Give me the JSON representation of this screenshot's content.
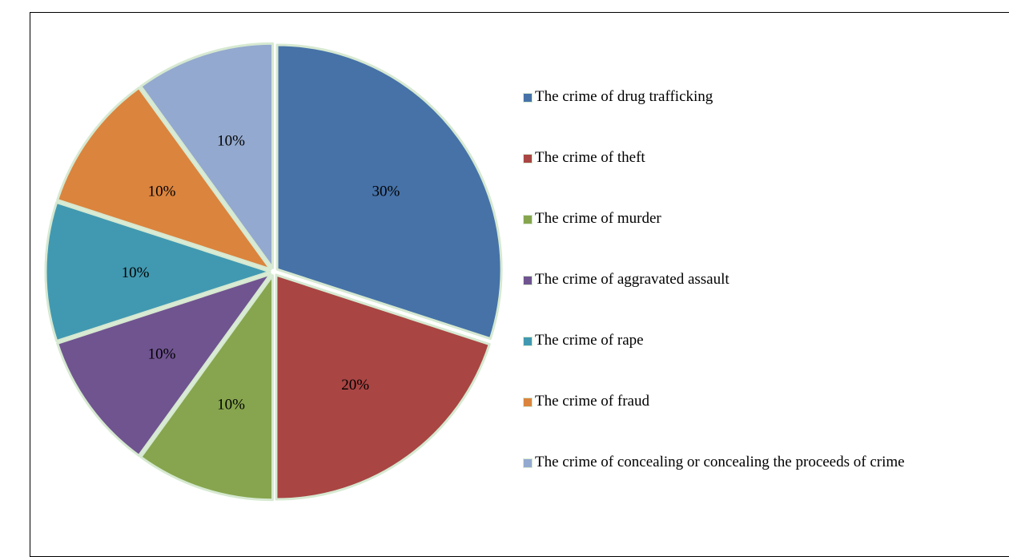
{
  "chart_data": {
    "type": "pie",
    "title": "",
    "legend_position": "right",
    "categories": [
      "The crime of drug trafficking",
      "The crime of theft",
      "The crime of murder",
      "The crime of aggravated assault",
      "The crime of rape",
      "The crime of fraud",
      "The crime of concealing or concealing the proceeds of crime"
    ],
    "values": [
      30,
      20,
      10,
      10,
      10,
      10,
      10
    ],
    "data_labels": [
      "30%",
      "20%",
      "10%",
      "10%",
      "10%",
      "10%",
      "10%"
    ],
    "colors": [
      "#4672a8",
      "#a94543",
      "#87a54e",
      "#705490",
      "#4199b1",
      "#db843e",
      "#93a9cf"
    ],
    "slice_border_color": "#d6e9d1"
  }
}
